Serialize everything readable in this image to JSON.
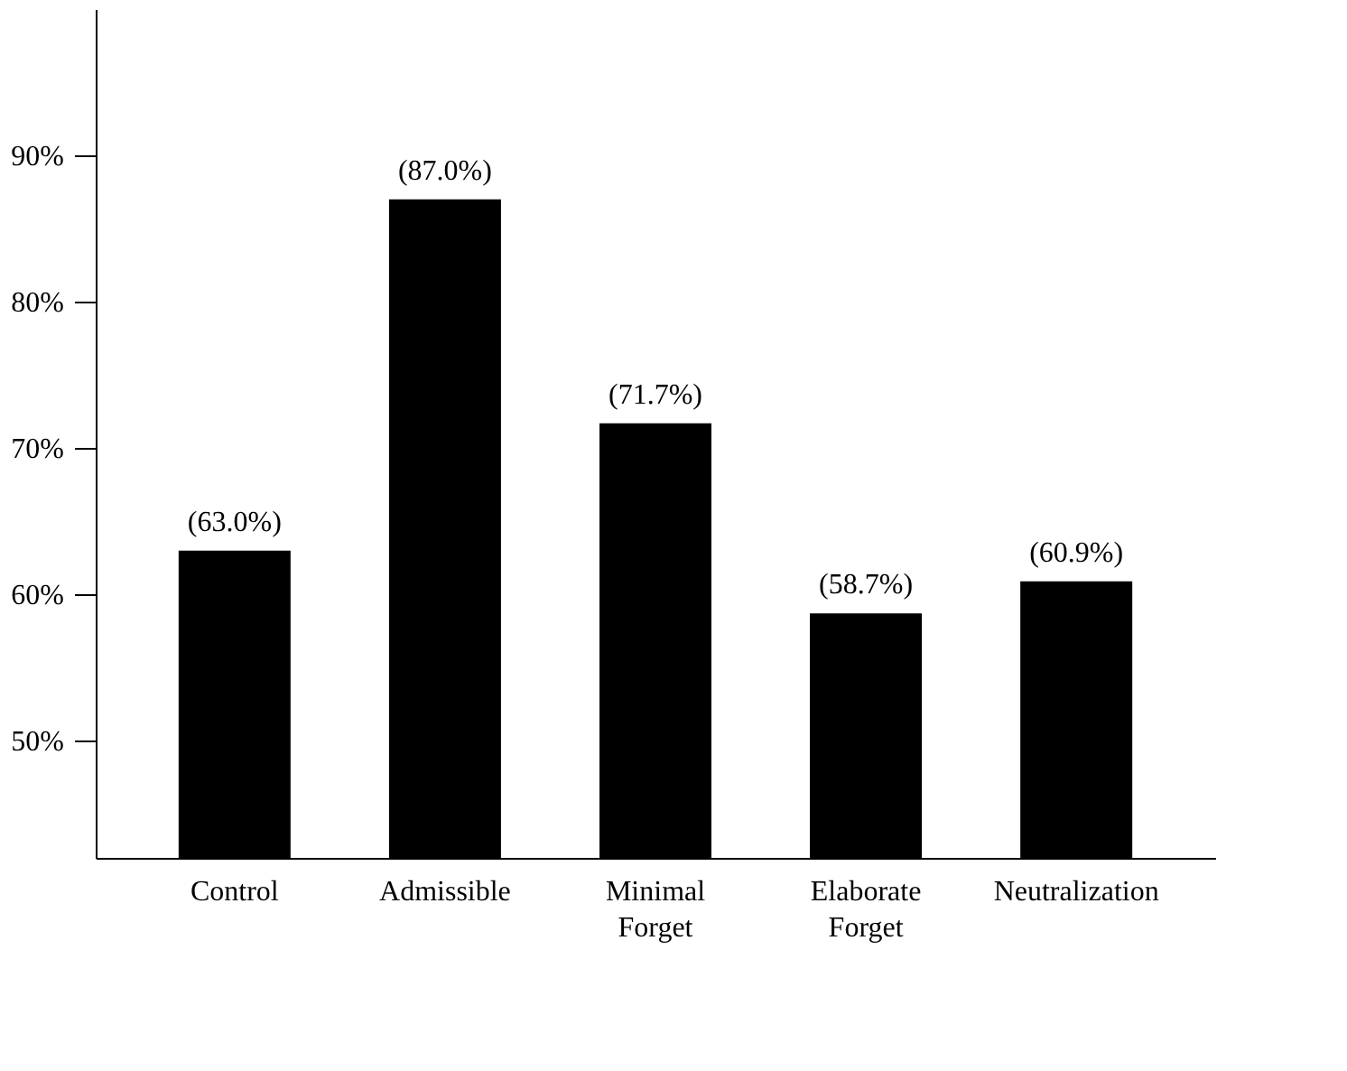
{
  "chart_data": {
    "type": "bar",
    "categories": [
      "Control",
      "Admissible",
      "Minimal Forget",
      "Elaborate Forget",
      "Neutralization"
    ],
    "values": [
      63.0,
      87.0,
      71.7,
      58.7,
      60.9
    ],
    "value_labels": [
      "(63.0%)",
      "(87.0%)",
      "(71.7%)",
      "(58.7%)",
      "(60.9%)"
    ],
    "color": "#000000",
    "ylim": [
      42,
      100
    ],
    "yticks": [
      {
        "value": 50,
        "label": "50%"
      },
      {
        "value": 60,
        "label": "60%"
      },
      {
        "value": 70,
        "label": "70%"
      },
      {
        "value": 80,
        "label": "80%"
      },
      {
        "value": 90,
        "label": "90%"
      }
    ],
    "grid": false
  }
}
